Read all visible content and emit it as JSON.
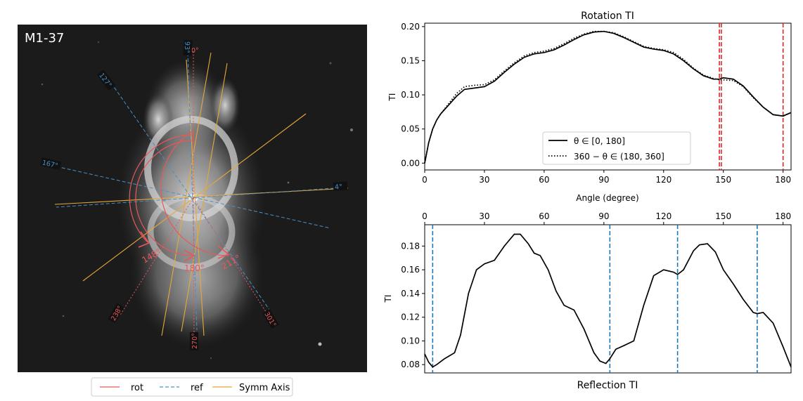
{
  "image_panel": {
    "label": "M1-37",
    "rot_angles": [
      {
        "text": "0°",
        "angle": 0
      },
      {
        "text": "148°",
        "angle": 148
      },
      {
        "text": "180°",
        "angle": 180
      },
      {
        "text": "211°",
        "angle": 211
      },
      {
        "text": "238°",
        "angle": 238
      },
      {
        "text": "270°",
        "angle": 270
      },
      {
        "text": "301°",
        "angle": 301
      }
    ],
    "ref_angles": [
      {
        "text": "93°",
        "angle": 93
      },
      {
        "text": "127°",
        "angle": 127
      },
      {
        "text": "167°",
        "angle": 167
      },
      {
        "text": "4°",
        "angle": 4
      }
    ],
    "legend": [
      {
        "label": "rot",
        "color": "#e8585a",
        "style": "solid"
      },
      {
        "label": "ref",
        "color": "#4a90c8",
        "style": "dashed"
      },
      {
        "label": "Symm Axis",
        "color": "#e6a83a",
        "style": "solid"
      }
    ]
  },
  "chart_data": [
    {
      "type": "line",
      "title": "Rotation TI",
      "xlabel": "Angle (degree)",
      "ylabel": "TI",
      "xlim": [
        0,
        184
      ],
      "ylim": [
        -0.01,
        0.205
      ],
      "xticks": [
        "0",
        "30",
        "60",
        "90",
        "120",
        "150",
        "180"
      ],
      "yticks": [
        "0.00",
        "0.05",
        "0.10",
        "0.15",
        "0.20"
      ],
      "series": [
        {
          "name": "θ ∈ [0, 180]",
          "style": "solid",
          "x": [
            0,
            2,
            4,
            6,
            8,
            12,
            16,
            20,
            25,
            30,
            35,
            40,
            45,
            50,
            55,
            60,
            65,
            70,
            75,
            80,
            85,
            90,
            95,
            100,
            105,
            110,
            115,
            120,
            125,
            130,
            135,
            140,
            145,
            148,
            150,
            155,
            160,
            165,
            170,
            175,
            180,
            184
          ],
          "y": [
            0.0,
            0.03,
            0.05,
            0.063,
            0.072,
            0.085,
            0.098,
            0.108,
            0.11,
            0.112,
            0.12,
            0.133,
            0.145,
            0.155,
            0.16,
            0.162,
            0.166,
            0.173,
            0.181,
            0.188,
            0.192,
            0.193,
            0.19,
            0.184,
            0.177,
            0.17,
            0.167,
            0.165,
            0.16,
            0.15,
            0.138,
            0.128,
            0.123,
            0.123,
            0.125,
            0.123,
            0.113,
            0.097,
            0.082,
            0.071,
            0.069,
            0.074
          ]
        },
        {
          "name": "360 − θ ∈ (180, 360]",
          "style": "dotted",
          "x": [
            0,
            2,
            4,
            6,
            8,
            12,
            16,
            20,
            25,
            30,
            35,
            40,
            45,
            50,
            55,
            60,
            65,
            70,
            75,
            80,
            85,
            90,
            95,
            100,
            105,
            110,
            115,
            120,
            125,
            130,
            135,
            140,
            145,
            148,
            150,
            155,
            160,
            165,
            170,
            175,
            180,
            184
          ],
          "y": [
            0.0,
            0.03,
            0.05,
            0.063,
            0.072,
            0.087,
            0.102,
            0.112,
            0.114,
            0.115,
            0.122,
            0.135,
            0.147,
            0.157,
            0.162,
            0.164,
            0.168,
            0.175,
            0.183,
            0.189,
            0.193,
            0.193,
            0.191,
            0.185,
            0.178,
            0.171,
            0.168,
            0.166,
            0.162,
            0.152,
            0.139,
            0.129,
            0.124,
            0.122,
            0.122,
            0.121,
            0.112,
            0.096,
            0.082,
            0.071,
            0.069,
            0.074
          ]
        }
      ],
      "vlines": [
        148,
        149,
        180
      ],
      "legend": "lower-center"
    },
    {
      "type": "line",
      "title": "Reflection TI",
      "xlabel": "",
      "ylabel": "TI",
      "xlim": [
        0,
        184
      ],
      "ylim": [
        0.073,
        0.198
      ],
      "xticks_top": [
        "0",
        "30",
        "60",
        "90",
        "120",
        "150",
        "180"
      ],
      "yticks": [
        "0.08",
        "0.10",
        "0.12",
        "0.14",
        "0.16",
        "0.18"
      ],
      "series": [
        {
          "style": "solid",
          "x": [
            0,
            2,
            4,
            6,
            10,
            15,
            18,
            22,
            26,
            30,
            35,
            40,
            45,
            48,
            52,
            55,
            58,
            62,
            66,
            70,
            75,
            80,
            85,
            88,
            91,
            93,
            96,
            100,
            105,
            110,
            115,
            120,
            125,
            127,
            130,
            135,
            138,
            142,
            146,
            150,
            155,
            160,
            165,
            167,
            170,
            175,
            180,
            184
          ],
          "y": [
            0.089,
            0.082,
            0.078,
            0.08,
            0.085,
            0.09,
            0.105,
            0.14,
            0.16,
            0.165,
            0.168,
            0.18,
            0.19,
            0.19,
            0.182,
            0.174,
            0.172,
            0.16,
            0.142,
            0.13,
            0.126,
            0.11,
            0.09,
            0.083,
            0.081,
            0.085,
            0.093,
            0.096,
            0.1,
            0.13,
            0.155,
            0.16,
            0.158,
            0.156,
            0.16,
            0.176,
            0.181,
            0.182,
            0.175,
            0.16,
            0.148,
            0.135,
            0.124,
            0.123,
            0.124,
            0.115,
            0.095,
            0.078
          ]
        }
      ],
      "vlines": [
        4,
        93,
        127,
        167
      ]
    }
  ]
}
